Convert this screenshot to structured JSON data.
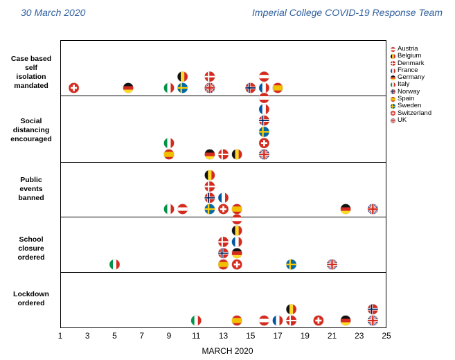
{
  "header": {
    "left": "30 March 2020",
    "right": "Imperial College COVID-19 Response Team"
  },
  "chart_data": {
    "type": "scatter",
    "title": "",
    "xlabel": "MARCH 2020",
    "ylabel": "",
    "x_range": [
      1,
      25
    ],
    "x_ticks": [
      1,
      3,
      5,
      7,
      9,
      11,
      13,
      15,
      17,
      19,
      21,
      23,
      25
    ],
    "legend_position": "right",
    "panels": [
      {
        "label": [
          "Case based",
          "self",
          "isolation",
          "mandated"
        ],
        "points": [
          {
            "country": "Switzerland",
            "day": 2,
            "row": 0
          },
          {
            "country": "Germany",
            "day": 6,
            "row": 0
          },
          {
            "country": "Italy",
            "day": 9,
            "row": 0
          },
          {
            "country": "Sweden",
            "day": 10,
            "row": 0
          },
          {
            "country": "Belgium",
            "day": 10,
            "row": 1
          },
          {
            "country": "UK",
            "day": 12,
            "row": 0
          },
          {
            "country": "Denmark",
            "day": 12,
            "row": 1
          },
          {
            "country": "Norway",
            "day": 15,
            "row": 0
          },
          {
            "country": "France",
            "day": 16,
            "row": 0
          },
          {
            "country": "Austria",
            "day": 16,
            "row": 1
          },
          {
            "country": "Spain",
            "day": 17,
            "row": 0
          }
        ]
      },
      {
        "label": [
          "Social",
          "distancing",
          "encouraged"
        ],
        "points": [
          {
            "country": "Spain",
            "day": 9,
            "row": 0
          },
          {
            "country": "Italy",
            "day": 9,
            "row": 1
          },
          {
            "country": "Germany",
            "day": 12,
            "row": 0
          },
          {
            "country": "Denmark",
            "day": 13,
            "row": 0
          },
          {
            "country": "Belgium",
            "day": 14,
            "row": 0
          },
          {
            "country": "UK",
            "day": 16,
            "row": 0
          },
          {
            "country": "Switzerland",
            "day": 16,
            "row": 1
          },
          {
            "country": "Sweden",
            "day": 16,
            "row": 2
          },
          {
            "country": "Norway",
            "day": 16,
            "row": 3
          },
          {
            "country": "France",
            "day": 16,
            "row": 4
          },
          {
            "country": "Austria",
            "day": 16,
            "row": 5
          }
        ]
      },
      {
        "label": [
          "Public",
          "events",
          "banned"
        ],
        "points": [
          {
            "country": "Italy",
            "day": 9,
            "row": 0
          },
          {
            "country": "Austria",
            "day": 10,
            "row": 0
          },
          {
            "country": "Sweden",
            "day": 12,
            "row": 0
          },
          {
            "country": "Norway",
            "day": 12,
            "row": 1
          },
          {
            "country": "Denmark",
            "day": 12,
            "row": 2
          },
          {
            "country": "Belgium",
            "day": 12,
            "row": 3
          },
          {
            "country": "Switzerland",
            "day": 13,
            "row": 0
          },
          {
            "country": "France",
            "day": 13,
            "row": 1
          },
          {
            "country": "Spain",
            "day": 14,
            "row": 0
          },
          {
            "country": "Germany",
            "day": 22,
            "row": 0
          },
          {
            "country": "UK",
            "day": 24,
            "row": 0
          }
        ]
      },
      {
        "label": [
          "School",
          "closure",
          "ordered"
        ],
        "points": [
          {
            "country": "Italy",
            "day": 5,
            "row": 0
          },
          {
            "country": "Spain",
            "day": 13,
            "row": 0
          },
          {
            "country": "Norway",
            "day": 13,
            "row": 1
          },
          {
            "country": "Denmark",
            "day": 13,
            "row": 2
          },
          {
            "country": "Switzerland",
            "day": 14,
            "row": 0
          },
          {
            "country": "Germany",
            "day": 14,
            "row": 1
          },
          {
            "country": "France",
            "day": 14,
            "row": 2
          },
          {
            "country": "Belgium",
            "day": 14,
            "row": 3
          },
          {
            "country": "Austria",
            "day": 14,
            "row": 4
          },
          {
            "country": "Sweden",
            "day": 18,
            "row": 0
          },
          {
            "country": "UK",
            "day": 21,
            "row": 0
          }
        ]
      },
      {
        "label": [
          "Lockdown",
          "ordered"
        ],
        "points": [
          {
            "country": "Italy",
            "day": 11,
            "row": 0
          },
          {
            "country": "Spain",
            "day": 14,
            "row": 0
          },
          {
            "country": "Austria",
            "day": 16,
            "row": 0
          },
          {
            "country": "France",
            "day": 17,
            "row": 0
          },
          {
            "country": "Denmark",
            "day": 18,
            "row": 0
          },
          {
            "country": "Belgium",
            "day": 18,
            "row": 1
          },
          {
            "country": "Switzerland",
            "day": 20,
            "row": 0
          },
          {
            "country": "Germany",
            "day": 22,
            "row": 0
          },
          {
            "country": "UK",
            "day": 24,
            "row": 0
          },
          {
            "country": "Norway",
            "day": 24,
            "row": 1
          }
        ]
      }
    ],
    "legend": [
      "Austria",
      "Belgium",
      "Denmark",
      "France",
      "Germany",
      "Italy",
      "Norway",
      "Spain",
      "Sweden",
      "Switzerland",
      "UK"
    ]
  },
  "flag_colors": {
    "red": "#D52B1E",
    "black": "#111111",
    "gold": "#FDDA24",
    "blue": "#0055A4",
    "green": "#009246",
    "sweden_blue": "#006AA7",
    "sweden_yellow": "#FECC00",
    "norway_blue": "#00205B",
    "uk_blue": "#012169",
    "spain_yellow": "#F1BF00"
  }
}
